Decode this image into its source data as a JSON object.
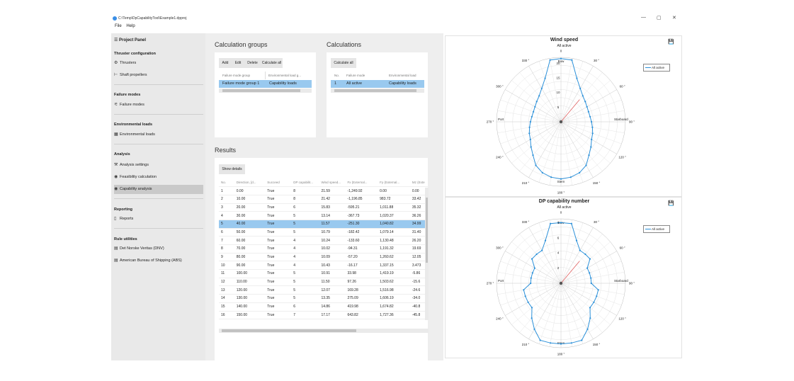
{
  "window": {
    "title": "C:\\Temp\\DpCapabilityTool\\Example1.dpproj",
    "minimize": "—",
    "maximize": "▢",
    "close": "✕"
  },
  "menu": [
    "File",
    "Help"
  ],
  "project_panel": {
    "title": "Project Panel",
    "sections": [
      {
        "title": "Thruster configuration",
        "items": [
          {
            "label": "Thrusters",
            "icon": "thruster-icon"
          },
          {
            "label": "Shaft propellers",
            "icon": "propeller-icon"
          }
        ]
      },
      {
        "title": "Failure modes",
        "items": [
          {
            "label": "Failure modes",
            "icon": "failure-icon"
          }
        ]
      },
      {
        "title": "Environmental loads",
        "items": [
          {
            "label": "Environmental loads",
            "icon": "grid-icon"
          }
        ]
      },
      {
        "title": "Analysis",
        "items": [
          {
            "label": "Analysis settings",
            "icon": "settings-icon"
          },
          {
            "label": "Feasibility calculation",
            "icon": "calc-icon"
          },
          {
            "label": "Capability analysis",
            "icon": "calc-icon",
            "selected": true
          }
        ]
      },
      {
        "title": "Reporting",
        "items": [
          {
            "label": "Reports",
            "icon": "report-icon"
          }
        ]
      },
      {
        "title": "Rule utilities",
        "items": [
          {
            "label": "Det Norske Veritas (DNV)",
            "icon": "book-icon"
          },
          {
            "label": "American Bureau of Shipping (ABS)",
            "icon": "book-icon"
          }
        ]
      }
    ]
  },
  "calculation_groups": {
    "title": "Calculation groups",
    "buttons": [
      "Add",
      "Edit",
      "Delete",
      "Calculate all"
    ],
    "columns": [
      "Failure mode group",
      "Environmental load g..."
    ],
    "rows": [
      [
        "Failure mode group 1",
        "Capability loads"
      ]
    ]
  },
  "calculations": {
    "title": "Calculations",
    "buttons": [
      "Calculate all"
    ],
    "columns": [
      "No.",
      "Failure mode",
      "Environmental load"
    ],
    "rows": [
      [
        "1",
        "All active",
        "Capability loads"
      ]
    ]
  },
  "results": {
    "title": "Results",
    "button": "Show details",
    "columns": [
      "No.",
      "Direction, [d...",
      "Succeed",
      "DP capabilit...",
      "Wind speed...",
      "Fx (External...",
      "Fy (External...",
      "Mz (Exte"
    ],
    "selected_row": 4,
    "rows": [
      [
        "1",
        "0.00",
        "True",
        "8",
        "21.59",
        "-1,249.92",
        "0.00",
        "0.00"
      ],
      [
        "2",
        "10.00",
        "True",
        "8",
        "21.42",
        "-1,196.85",
        "983.72",
        "33.42"
      ],
      [
        "3",
        "20.00",
        "True",
        "6",
        "15.83",
        "-595.21",
        "1,011.88",
        "35.32"
      ],
      [
        "4",
        "30.00",
        "True",
        "5",
        "13.14",
        "-367.73",
        "1,020.37",
        "36.26"
      ],
      [
        "5",
        "40.00",
        "True",
        "5",
        "11.57",
        "-251.30",
        "1,040.82",
        "34.99"
      ],
      [
        "6",
        "50.00",
        "True",
        "5",
        "10.79",
        "-182.42",
        "1,079.14",
        "31.40"
      ],
      [
        "7",
        "60.00",
        "True",
        "4",
        "10.24",
        "-133.60",
        "1,130.48",
        "26.20"
      ],
      [
        "8",
        "70.00",
        "True",
        "4",
        "10.02",
        "-94.31",
        "1,191.32",
        "19.69"
      ],
      [
        "9",
        "80.00",
        "True",
        "4",
        "10.09",
        "-57.20",
        "1,260.62",
        "12.05"
      ],
      [
        "10",
        "90.00",
        "True",
        "4",
        "10.43",
        "-16.17",
        "1,337.15",
        "3.473"
      ],
      [
        "11",
        "100.00",
        "True",
        "5",
        "10.91",
        "33.98",
        "1,419.19",
        "-5.86"
      ],
      [
        "12",
        "110.00",
        "True",
        "5",
        "11.50",
        "97.26",
        "1,503.62",
        "-15.6"
      ],
      [
        "13",
        "120.00",
        "True",
        "5",
        "12.07",
        "169.28",
        "1,516.98",
        "-24.6"
      ],
      [
        "14",
        "130.00",
        "True",
        "5",
        "13.35",
        "275.09",
        "1,606.19",
        "-34.0"
      ],
      [
        "15",
        "140.00",
        "True",
        "6",
        "14.86",
        "419.98",
        "1,674.82",
        "-40.8"
      ],
      [
        "16",
        "150.00",
        "True",
        "7",
        "17.17",
        "643.82",
        "1,727.36",
        "-45.8"
      ]
    ]
  },
  "polar_labels": {
    "bow": "Bow",
    "stern": "Stern",
    "port": "Port",
    "starboard": "Starboard"
  },
  "colors": {
    "series": "#2b90d9",
    "selected_row": "#99c9ef",
    "current_direction": "#e06060"
  },
  "chart_data": [
    {
      "type": "polar",
      "title": "Wind speed",
      "subtitle": "All active",
      "legend": [
        "All active"
      ],
      "legend_position": "top-right",
      "angle_ticks": [
        "0",
        "30 °",
        "60 °",
        "90 °",
        "120 °",
        "150 °",
        "180 °",
        "210 °",
        "240 °",
        "270 °",
        "300 °",
        "330 °"
      ],
      "radial_ticks": [
        "5",
        "10",
        "15",
        "20"
      ],
      "r_max": 22,
      "highlight_direction": 40,
      "directions": [
        0,
        10,
        20,
        30,
        40,
        50,
        60,
        70,
        80,
        90,
        100,
        110,
        120,
        130,
        140,
        150,
        160,
        170,
        180,
        190,
        200,
        210,
        220,
        230,
        240,
        250,
        260,
        270,
        280,
        290,
        300,
        310,
        320,
        330,
        340,
        350
      ],
      "values": [
        21.59,
        21.42,
        15.83,
        13.14,
        11.57,
        10.79,
        10.24,
        10.02,
        10.09,
        10.43,
        10.91,
        11.5,
        12.07,
        13.35,
        14.86,
        17.17,
        18.5,
        19.2,
        19.5,
        19.2,
        18.5,
        17.17,
        14.86,
        13.35,
        12.07,
        11.5,
        10.91,
        10.43,
        10.09,
        10.02,
        10.24,
        10.79,
        11.57,
        13.14,
        15.83,
        21.42
      ]
    },
    {
      "type": "polar",
      "title": "DP capability number",
      "subtitle": "All active",
      "legend": [
        "All active"
      ],
      "legend_position": "top-right",
      "angle_ticks": [
        "0",
        "30 °",
        "60 °",
        "90 °",
        "120 °",
        "150 °",
        "180 °",
        "210 °",
        "240 °",
        "270 °",
        "300 °",
        "330 °"
      ],
      "radial_ticks": [
        "2",
        "4",
        "6",
        "8"
      ],
      "r_max": 8.5,
      "highlight_direction": 40,
      "directions": [
        0,
        10,
        20,
        30,
        40,
        50,
        60,
        70,
        80,
        90,
        100,
        110,
        120,
        130,
        140,
        150,
        160,
        170,
        180,
        190,
        200,
        210,
        220,
        230,
        240,
        250,
        260,
        270,
        280,
        290,
        300,
        310,
        320,
        330,
        340,
        350
      ],
      "values": [
        8,
        8,
        6,
        5,
        5,
        5,
        4,
        4,
        4,
        4,
        5,
        5,
        5,
        5,
        6,
        7,
        8,
        8,
        8,
        8,
        8,
        7,
        6,
        5,
        5,
        5,
        5,
        4,
        4,
        4,
        4,
        5,
        5,
        5,
        6,
        8
      ]
    }
  ]
}
